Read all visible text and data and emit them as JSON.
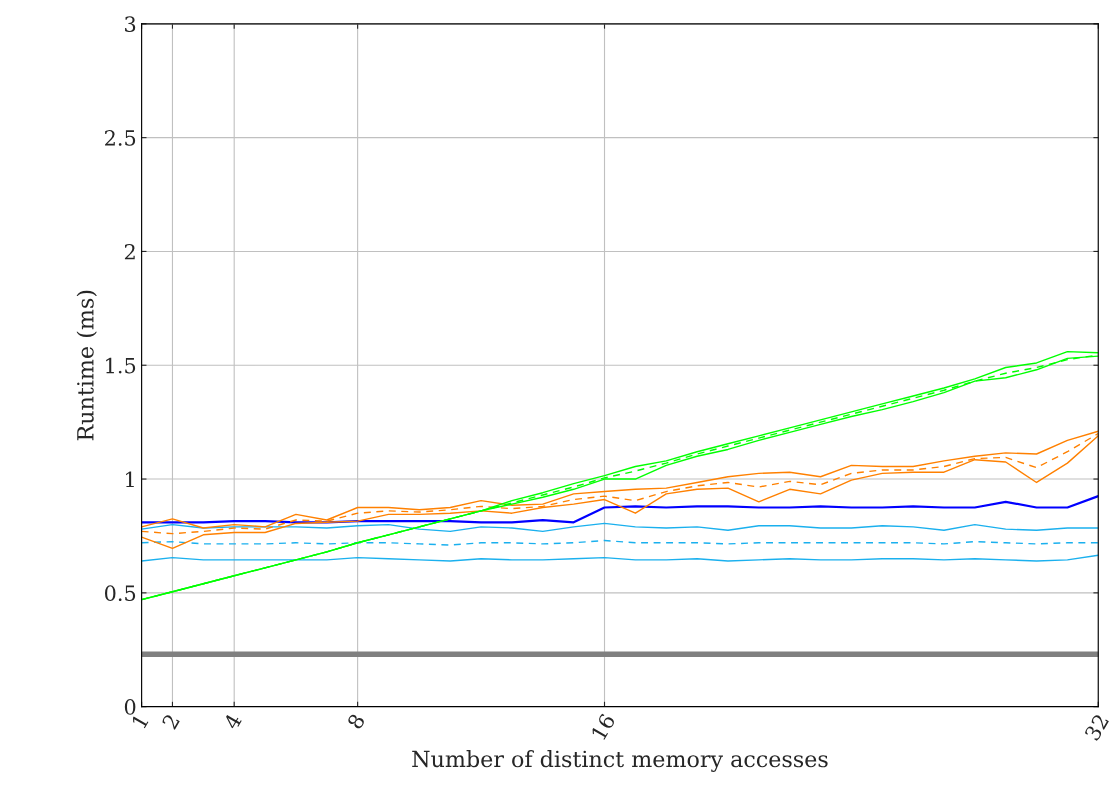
{
  "chart_data": {
    "type": "line",
    "xlabel": "Number of distinct memory accesses",
    "ylabel": "Runtime (ms)",
    "x": [
      1,
      2,
      3,
      4,
      5,
      6,
      7,
      8,
      9,
      10,
      11,
      12,
      13,
      14,
      15,
      16,
      17,
      18,
      19,
      20,
      21,
      22,
      23,
      24,
      25,
      26,
      27,
      28,
      29,
      30,
      31,
      32
    ],
    "xlim": [
      1,
      32
    ],
    "xticks": [
      1,
      2,
      4,
      8,
      16,
      32
    ],
    "ylim": [
      0,
      3
    ],
    "yticks": [
      0,
      0.5,
      1,
      1.5,
      2,
      2.5,
      3
    ],
    "grid": true,
    "legend": false,
    "marker": "none",
    "ref_lines": [
      {
        "axis": "y",
        "value": 0.23,
        "color": "#808080"
      }
    ],
    "series": [
      {
        "color": "#0000ff",
        "line_style": "solid",
        "values": [
          0.81,
          0.81,
          0.81,
          0.815,
          0.815,
          0.81,
          0.81,
          0.815,
          0.815,
          0.815,
          0.815,
          0.81,
          0.81,
          0.82,
          0.81,
          0.875,
          0.88,
          0.875,
          0.88,
          0.88,
          0.875,
          0.875,
          0.88,
          0.875,
          0.875,
          0.88,
          0.875,
          0.875,
          0.9,
          0.875,
          0.875,
          0.925
        ]
      },
      {
        "color": "#1ab0ee",
        "line_style": "solid",
        "values": [
          0.78,
          0.8,
          0.785,
          0.79,
          0.79,
          0.79,
          0.785,
          0.795,
          0.8,
          0.78,
          0.77,
          0.79,
          0.785,
          0.77,
          0.79,
          0.805,
          0.79,
          0.785,
          0.79,
          0.775,
          0.795,
          0.795,
          0.785,
          0.785,
          0.795,
          0.79,
          0.775,
          0.8,
          0.78,
          0.775,
          0.785,
          0.785
        ]
      },
      {
        "color": "#1ab0ee",
        "line_style": "dashed",
        "values": [
          0.72,
          0.725,
          0.715,
          0.715,
          0.715,
          0.72,
          0.715,
          0.72,
          0.72,
          0.715,
          0.71,
          0.72,
          0.72,
          0.715,
          0.72,
          0.73,
          0.72,
          0.72,
          0.72,
          0.715,
          0.72,
          0.72,
          0.72,
          0.72,
          0.72,
          0.72,
          0.715,
          0.725,
          0.72,
          0.715,
          0.72,
          0.72
        ]
      },
      {
        "color": "#1ab0ee",
        "line_style": "solid",
        "values": [
          0.64,
          0.655,
          0.645,
          0.645,
          0.645,
          0.645,
          0.645,
          0.655,
          0.65,
          0.645,
          0.64,
          0.65,
          0.645,
          0.645,
          0.65,
          0.655,
          0.645,
          0.645,
          0.65,
          0.64,
          0.645,
          0.65,
          0.645,
          0.645,
          0.65,
          0.65,
          0.645,
          0.65,
          0.645,
          0.64,
          0.645,
          0.665
        ]
      },
      {
        "color": "#ff8000",
        "line_style": "solid",
        "values": [
          0.79,
          0.825,
          0.785,
          0.8,
          0.79,
          0.845,
          0.82,
          0.875,
          0.875,
          0.865,
          0.875,
          0.905,
          0.885,
          0.89,
          0.935,
          0.945,
          0.955,
          0.96,
          0.985,
          1.01,
          1.025,
          1.03,
          1.01,
          1.06,
          1.055,
          1.055,
          1.08,
          1.1,
          1.115,
          1.11,
          1.17,
          1.21
        ]
      },
      {
        "color": "#ff8000",
        "line_style": "dashed",
        "values": [
          0.77,
          0.76,
          0.77,
          0.785,
          0.78,
          0.82,
          0.815,
          0.85,
          0.86,
          0.855,
          0.865,
          0.88,
          0.87,
          0.88,
          0.91,
          0.925,
          0.905,
          0.945,
          0.97,
          0.985,
          0.965,
          0.99,
          0.975,
          1.025,
          1.04,
          1.04,
          1.055,
          1.09,
          1.095,
          1.05,
          1.12,
          1.2
        ]
      },
      {
        "color": "#ff8000",
        "line_style": "solid",
        "values": [
          0.745,
          0.695,
          0.755,
          0.765,
          0.765,
          0.805,
          0.81,
          0.815,
          0.845,
          0.845,
          0.85,
          0.86,
          0.85,
          0.875,
          0.89,
          0.91,
          0.85,
          0.935,
          0.955,
          0.96,
          0.9,
          0.955,
          0.935,
          0.995,
          1.025,
          1.03,
          1.03,
          1.085,
          1.075,
          0.985,
          1.07,
          1.19
        ]
      },
      {
        "color": "#00ff00",
        "line_style": "solid",
        "values": [
          0.47,
          0.505,
          0.54,
          0.575,
          0.61,
          0.645,
          0.68,
          0.72,
          0.755,
          0.79,
          0.825,
          0.86,
          0.905,
          0.94,
          0.98,
          1.015,
          1.055,
          1.08,
          1.12,
          1.155,
          1.19,
          1.225,
          1.26,
          1.295,
          1.33,
          1.365,
          1.4,
          1.44,
          1.49,
          1.51,
          1.56,
          1.555
        ]
      },
      {
        "color": "#00ff00",
        "line_style": "dashed",
        "values": [
          0.47,
          0.505,
          0.54,
          0.575,
          0.61,
          0.645,
          0.68,
          0.72,
          0.755,
          0.79,
          0.825,
          0.86,
          0.895,
          0.93,
          0.965,
          1.005,
          1.035,
          1.07,
          1.11,
          1.145,
          1.18,
          1.215,
          1.25,
          1.285,
          1.32,
          1.355,
          1.39,
          1.43,
          1.465,
          1.49,
          1.525,
          1.545
        ]
      },
      {
        "color": "#00ff00",
        "line_style": "solid",
        "values": [
          0.47,
          0.505,
          0.54,
          0.575,
          0.61,
          0.645,
          0.68,
          0.72,
          0.755,
          0.79,
          0.825,
          0.86,
          0.89,
          0.92,
          0.955,
          1.0,
          1.0,
          1.06,
          1.1,
          1.13,
          1.17,
          1.205,
          1.24,
          1.275,
          1.305,
          1.34,
          1.38,
          1.43,
          1.445,
          1.48,
          1.53,
          1.54
        ]
      }
    ]
  }
}
